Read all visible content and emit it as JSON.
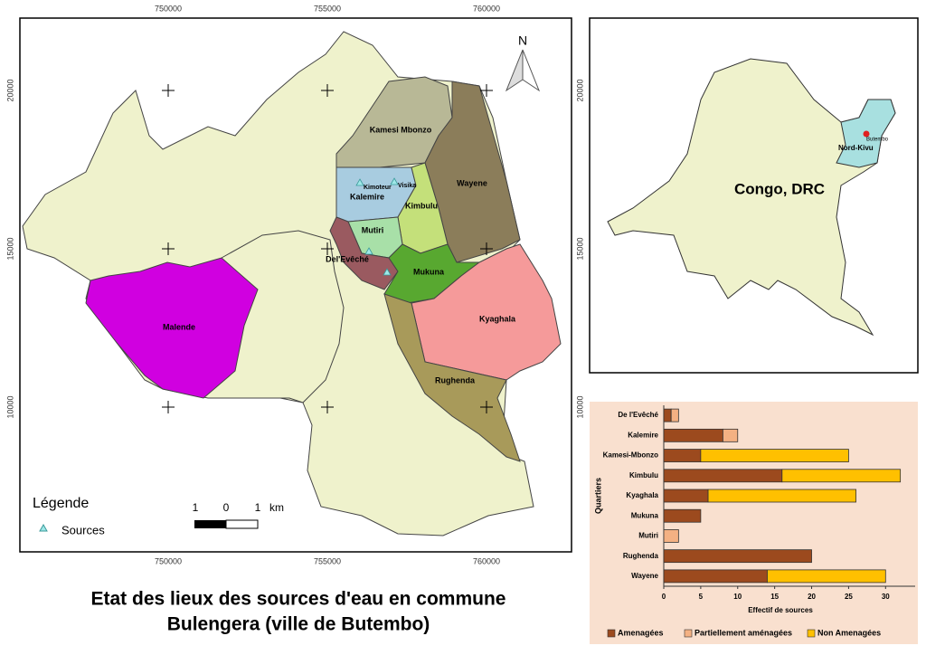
{
  "map": {
    "grid": {
      "x": [
        750000,
        755000,
        760000
      ],
      "y": [
        20000,
        15000,
        10000
      ]
    },
    "north": "N",
    "regions": [
      "Kamesi Mbonzo",
      "Wayene",
      "Kalemire",
      "Kimbulu",
      "Mutiri",
      "Del'Evêché",
      "Mukuna",
      "Kyaghala",
      "Malende",
      "Rughenda"
    ],
    "sources_labels": [
      "Kimoteur",
      "Visika"
    ],
    "legend": {
      "title": "Légende",
      "item": "Sources"
    },
    "scale": {
      "labels": [
        1,
        0,
        1
      ],
      "unit": "km"
    }
  },
  "inset": {
    "country": "Congo, DRC",
    "province": "Nord-Kivu",
    "city": "Butembo"
  },
  "title": [
    "Etat des lieux des sources d'eau en commune",
    "Bulengera (ville de Butembo)"
  ],
  "chart_data": {
    "type": "bar",
    "orientation": "horizontal",
    "stacked": true,
    "categories": [
      "De l'Evêché",
      "Kalemire",
      "Kamesi-Mbonzo",
      "Kimbulu",
      "Kyaghala",
      "Mukuna",
      "Mutiri",
      "Rughenda",
      "Wayene"
    ],
    "series": [
      {
        "name": "Amenagées",
        "color": "#9c4a1e",
        "values": [
          1,
          8,
          5,
          16,
          6,
          5,
          0,
          20,
          14
        ]
      },
      {
        "name": "Partiellement aménagées",
        "color": "#f4b183",
        "values": [
          1,
          2,
          0,
          0,
          0,
          0,
          2,
          0,
          0
        ]
      },
      {
        "name": "Non Amenagées",
        "color": "#ffc000",
        "values": [
          0,
          0,
          20,
          16,
          20,
          0,
          0,
          0,
          16
        ]
      }
    ],
    "xlim": [
      0,
      34
    ],
    "xticks": [
      0,
      5,
      10,
      15,
      20,
      25,
      30
    ],
    "x_label": "Effectif de sources",
    "y_label": "Quartiers",
    "legend": "bottom"
  }
}
